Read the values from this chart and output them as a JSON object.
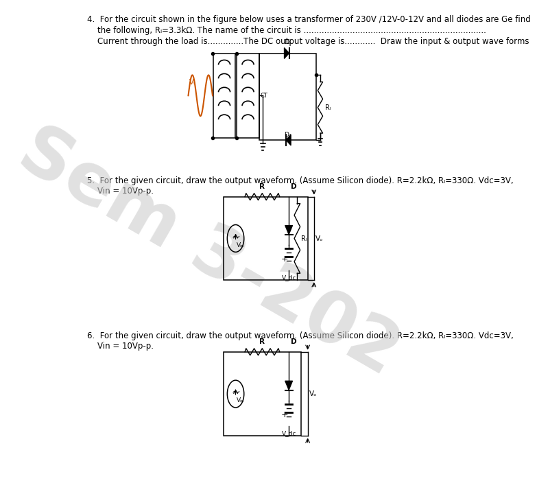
{
  "bg_color": "#ffffff",
  "text_color": "#000000",
  "text_fontsize": 8.5,
  "q4_line1": "4.  For the circuit shown in the figure below uses a transformer of 230V /12V-0-12V and all diodes are Ge find",
  "q4_line2": "    the following, Rₗ=3.3kΩ. The name of the circuit is .......................................................................",
  "q4_line3": "    Current through the load is..............The DC output voltage is............  Draw the input & output wave forms",
  "q5_line1": "5.  For the given circuit, draw the output waveform. (Assume Silicon diode). R=2.2kΩ, Rₗ=330Ω. Vdc=3V,",
  "q5_line2": "    Vin = 10Vp-p.",
  "q6_line1": "6.  For the given circuit, draw the output waveform. (Assume Silicon diode). R=2.2kΩ, Rₗ=330Ω. Vdc=3V,",
  "q6_line2": "    Vin = 10Vp-p.",
  "watermark": "Sem 3-202"
}
